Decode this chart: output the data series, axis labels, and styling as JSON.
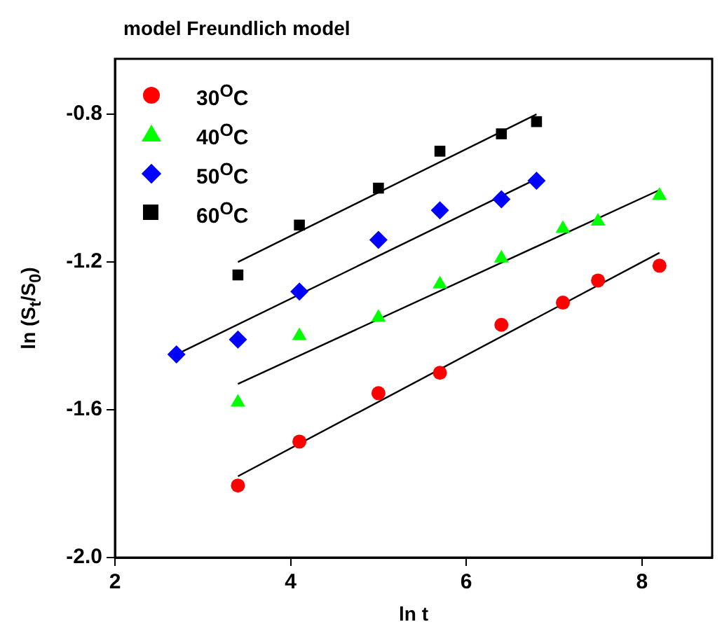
{
  "chart_data": {
    "type": "scatter",
    "title": "model Freundlich model",
    "xlabel": "ln t",
    "ylabel": "ln (S$_{t}$/S$_{0}$)",
    "xlim": [
      2,
      8.8
    ],
    "ylim": [
      -2,
      -0.65
    ],
    "xticks": [
      2,
      4,
      6,
      8
    ],
    "yticks": [
      {
        "value": -2,
        "label": "-2.0"
      },
      -1.6,
      -1.2,
      -0.8
    ],
    "grid": false,
    "legend": "top left",
    "series": [
      {
        "name": "30$^{O}$C",
        "color": "#ff0000",
        "marker": "circle",
        "x": [
          3.4,
          4.1,
          5.0,
          5.7,
          6.4,
          7.1,
          7.5,
          8.2
        ],
        "values": [
          -1.805,
          -1.686,
          -1.555,
          -1.5,
          -1.37,
          -1.31,
          -1.25,
          -1.21
        ]
      },
      {
        "name": "40$^{O}$C",
        "color": "#00ff00",
        "marker": "triangle",
        "x": [
          3.4,
          4.1,
          5.0,
          5.7,
          6.4,
          7.1,
          7.5,
          8.2
        ],
        "values": [
          -1.58,
          -1.4,
          -1.35,
          -1.26,
          -1.19,
          -1.11,
          -1.09,
          -1.02
        ]
      },
      {
        "name": "50$^{O}$C",
        "color": "#0000ff",
        "marker": "diamond",
        "x": [
          2.7,
          3.4,
          4.1,
          5.0,
          5.7,
          6.4,
          6.8
        ],
        "values": [
          -1.45,
          -1.41,
          -1.28,
          -1.14,
          -1.06,
          -1.03,
          -0.98
        ]
      },
      {
        "name": "60$^{O}$C",
        "color": "#000000",
        "marker": "square",
        "x": [
          3.4,
          4.1,
          5.0,
          5.7,
          6.4,
          6.8
        ],
        "values": [
          -1.235,
          -1.1,
          -1.0,
          -0.9,
          -0.853,
          -0.82
        ]
      },
      {
        "type": "line",
        "color": "#000000",
        "marker": "none",
        "x": [
          3.4,
          8.2
        ],
        "values": [
          -1.78,
          -1.175
        ]
      },
      {
        "type": "line",
        "color": "#000000",
        "marker": "none",
        "x": [
          3.4,
          8.2
        ],
        "values": [
          -1.53,
          -1.005
        ]
      },
      {
        "type": "line",
        "color": "#000000",
        "marker": "none",
        "x": [
          2.7,
          6.8
        ],
        "values": [
          -1.45,
          -0.975
        ]
      },
      {
        "type": "line",
        "color": "#000000",
        "marker": "none",
        "x": [
          3.4,
          6.8
        ],
        "values": [
          -1.2,
          -0.8
        ]
      }
    ]
  }
}
